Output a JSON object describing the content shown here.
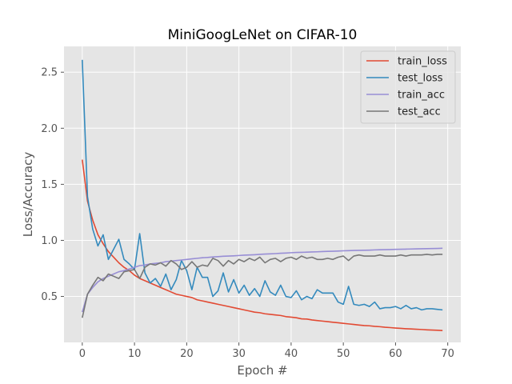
{
  "chart_data": {
    "type": "line",
    "title": "MiniGoogLeNet on CIFAR-10",
    "xlabel": "Epoch #",
    "ylabel": "Loss/Accuracy",
    "xlim": [
      -3.5,
      72.5
    ],
    "ylim": [
      0.09,
      2.73
    ],
    "xticks": [
      0,
      10,
      20,
      30,
      40,
      50,
      60,
      70
    ],
    "yticks": [
      0.5,
      1.0,
      1.5,
      2.0,
      2.5
    ],
    "xtick_labels": [
      "0",
      "10",
      "20",
      "30",
      "40",
      "50",
      "60",
      "70"
    ],
    "ytick_labels": [
      "0.5",
      "1.0",
      "1.5",
      "2.0",
      "2.5"
    ],
    "grid": true,
    "legend_position": "upper right",
    "series": [
      {
        "name": "train_loss",
        "color": "#e24a33",
        "values": [
          1.72,
          1.35,
          1.18,
          1.05,
          0.97,
          0.9,
          0.85,
          0.8,
          0.76,
          0.73,
          0.69,
          0.66,
          0.64,
          0.62,
          0.6,
          0.58,
          0.56,
          0.54,
          0.52,
          0.51,
          0.5,
          0.49,
          0.47,
          0.46,
          0.45,
          0.44,
          0.43,
          0.42,
          0.41,
          0.4,
          0.39,
          0.38,
          0.37,
          0.36,
          0.355,
          0.345,
          0.34,
          0.335,
          0.33,
          0.32,
          0.315,
          0.31,
          0.3,
          0.298,
          0.29,
          0.285,
          0.28,
          0.275,
          0.27,
          0.265,
          0.26,
          0.255,
          0.25,
          0.245,
          0.24,
          0.238,
          0.233,
          0.23,
          0.225,
          0.222,
          0.218,
          0.215,
          0.212,
          0.21,
          0.207,
          0.205,
          0.202,
          0.2,
          0.198,
          0.196
        ]
      },
      {
        "name": "test_loss",
        "color": "#348abd",
        "values": [
          2.61,
          1.39,
          1.1,
          0.95,
          1.05,
          0.83,
          0.92,
          1.01,
          0.83,
          0.79,
          0.74,
          1.06,
          0.71,
          0.62,
          0.66,
          0.59,
          0.7,
          0.56,
          0.65,
          0.82,
          0.73,
          0.56,
          0.76,
          0.67,
          0.67,
          0.5,
          0.55,
          0.71,
          0.54,
          0.65,
          0.53,
          0.6,
          0.51,
          0.57,
          0.5,
          0.64,
          0.54,
          0.51,
          0.6,
          0.5,
          0.49,
          0.55,
          0.47,
          0.5,
          0.48,
          0.56,
          0.53,
          0.53,
          0.53,
          0.45,
          0.43,
          0.59,
          0.43,
          0.42,
          0.43,
          0.41,
          0.45,
          0.39,
          0.4,
          0.4,
          0.41,
          0.39,
          0.42,
          0.39,
          0.4,
          0.38,
          0.39,
          0.39,
          0.385,
          0.38
        ]
      },
      {
        "name": "train_acc",
        "color": "#988ed5",
        "values": [
          0.36,
          0.52,
          0.58,
          0.63,
          0.66,
          0.68,
          0.7,
          0.72,
          0.73,
          0.745,
          0.76,
          0.775,
          0.78,
          0.79,
          0.795,
          0.8,
          0.81,
          0.815,
          0.82,
          0.825,
          0.83,
          0.835,
          0.84,
          0.845,
          0.848,
          0.852,
          0.855,
          0.858,
          0.86,
          0.862,
          0.865,
          0.868,
          0.87,
          0.872,
          0.875,
          0.878,
          0.88,
          0.882,
          0.885,
          0.887,
          0.89,
          0.892,
          0.893,
          0.895,
          0.897,
          0.898,
          0.9,
          0.902,
          0.903,
          0.905,
          0.907,
          0.908,
          0.91,
          0.911,
          0.912,
          0.913,
          0.915,
          0.916,
          0.917,
          0.918,
          0.92,
          0.921,
          0.922,
          0.923,
          0.924,
          0.925,
          0.926,
          0.927,
          0.928,
          0.93
        ]
      },
      {
        "name": "test_acc",
        "color": "#777777",
        "values": [
          0.31,
          0.52,
          0.6,
          0.67,
          0.64,
          0.7,
          0.68,
          0.66,
          0.72,
          0.73,
          0.74,
          0.66,
          0.76,
          0.79,
          0.78,
          0.8,
          0.77,
          0.82,
          0.79,
          0.74,
          0.76,
          0.81,
          0.76,
          0.78,
          0.77,
          0.84,
          0.82,
          0.77,
          0.82,
          0.79,
          0.83,
          0.81,
          0.84,
          0.82,
          0.85,
          0.8,
          0.83,
          0.84,
          0.81,
          0.84,
          0.85,
          0.83,
          0.86,
          0.84,
          0.85,
          0.83,
          0.83,
          0.84,
          0.83,
          0.85,
          0.86,
          0.82,
          0.86,
          0.87,
          0.86,
          0.86,
          0.86,
          0.87,
          0.86,
          0.86,
          0.86,
          0.87,
          0.86,
          0.87,
          0.87,
          0.87,
          0.875,
          0.87,
          0.875,
          0.875
        ]
      }
    ]
  }
}
